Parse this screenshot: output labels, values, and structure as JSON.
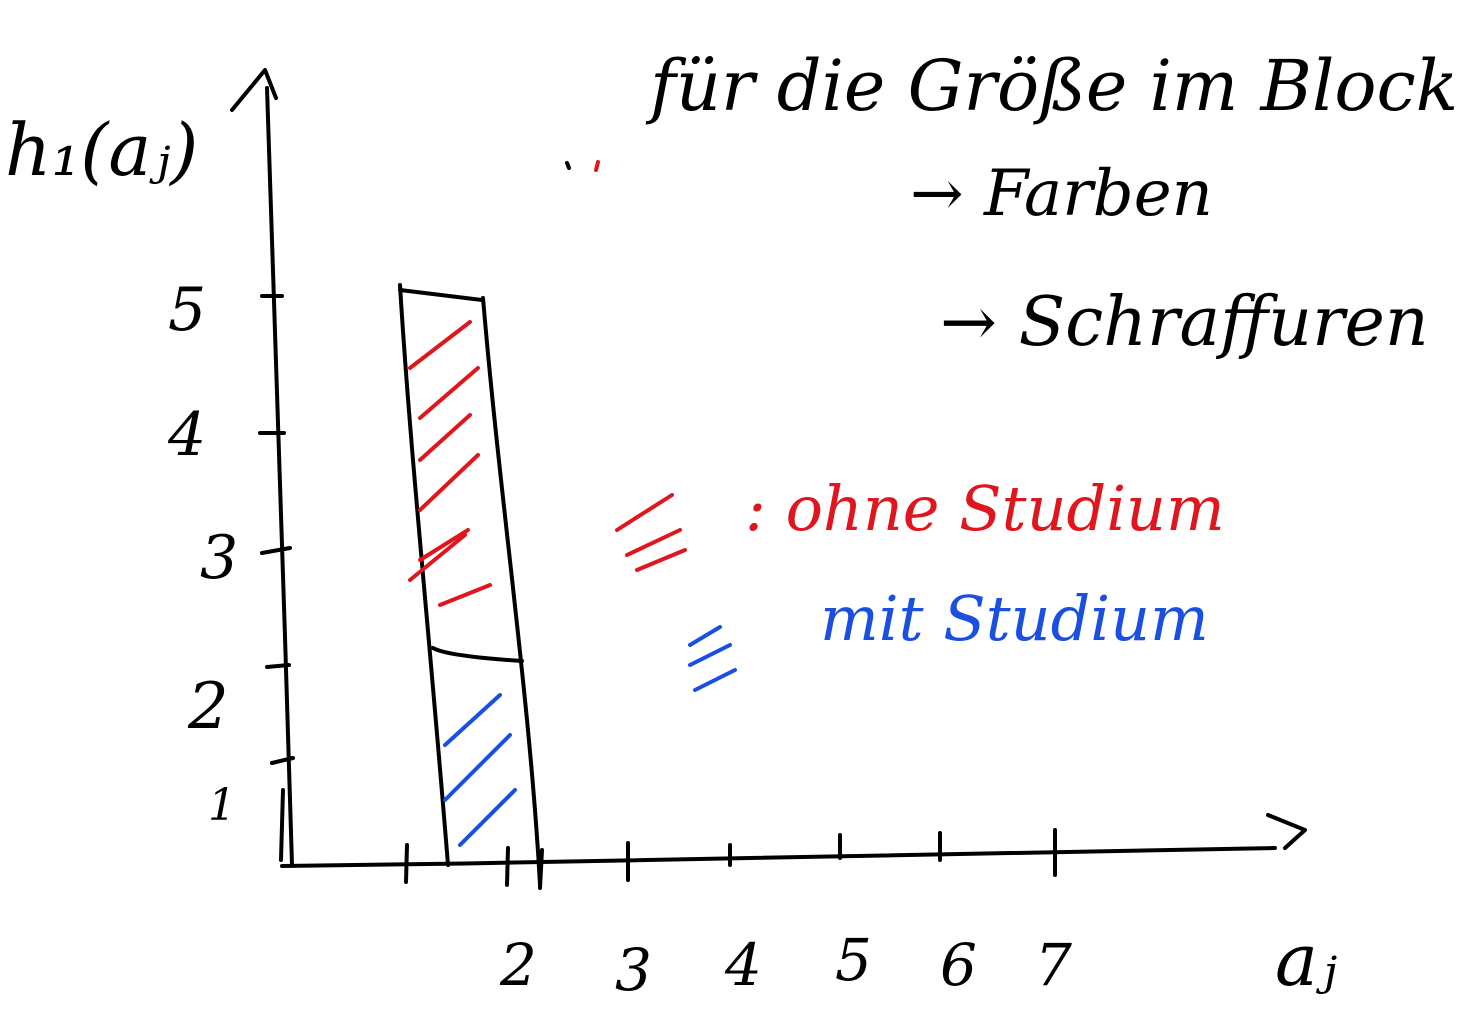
{
  "y_axis_label": "h₁(aⱼ)",
  "x_axis_label": "aⱼ",
  "y_ticks": [
    "1",
    "2",
    "3",
    "4",
    "5"
  ],
  "x_ticks": [
    "2",
    "3",
    "4",
    "5",
    "6",
    "7"
  ],
  "notes": {
    "line1": "für die Größe im Block",
    "line2": "→ Farben",
    "line3": "→ Schraffuren"
  },
  "legend": {
    "red_label": ": ohne Studium",
    "blue_label": "mit Studium"
  },
  "colors": {
    "ink": "#000000",
    "red": "#e0161e",
    "blue": "#1a4fe0",
    "background": "#ffffff"
  }
}
